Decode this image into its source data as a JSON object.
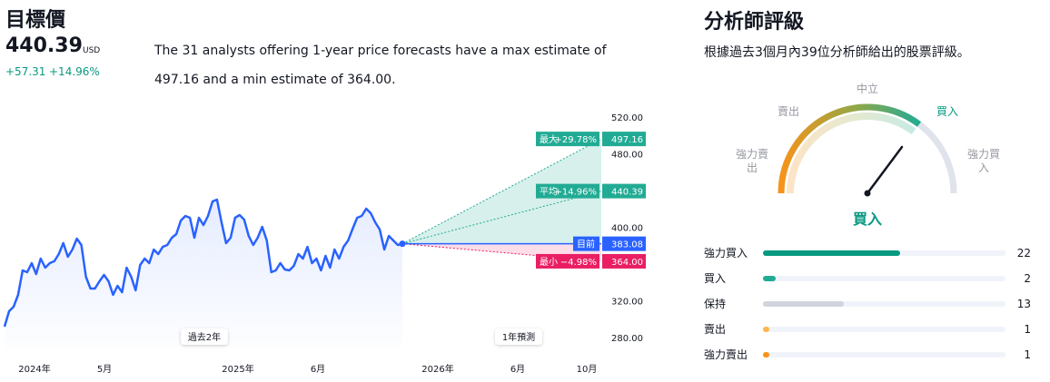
{
  "summary": {
    "title": "目標價",
    "price": "440.39",
    "currency": "USD",
    "change": "+57.31",
    "change_pct": "+14.96%",
    "description": "The 31 analysts offering 1-year price forecasts have a max estimate of 497.16 and a min estimate of 364.00."
  },
  "chart_data": {
    "type": "line",
    "history": {
      "color": "#2962ff",
      "values": [
        292.8,
        309.6,
        314.6,
        327.4,
        354.1,
        352.1,
        362.0,
        350.1,
        366.9,
        357.0,
        362.0,
        364.0,
        371.9,
        383.8,
        368.9,
        376.8,
        388.6,
        381.7,
        347.2,
        334.3,
        334.3,
        342.2,
        349.1,
        342.2,
        327.4,
        337.3,
        330.4,
        357.0,
        347.2,
        332.3,
        360.0,
        366.9,
        362.0,
        376.8,
        371.9,
        379.8,
        381.7,
        389.6,
        393.6,
        408.4,
        413.3,
        411.4,
        389.6,
        411.4,
        403.5,
        413.3,
        429.1,
        431.1,
        406.4,
        383.7,
        389.6,
        411.4,
        414.3,
        409.4,
        391.6,
        381.7,
        389.6,
        401.5,
        386.7,
        352.1,
        354.1,
        362.0,
        355.1,
        354.1,
        359.0,
        371.9,
        366.9,
        379.8,
        362.0,
        366.9,
        354.1,
        369.9,
        357.0,
        376.8,
        366.9,
        379.8,
        386.7,
        399.5,
        411.4,
        413.3,
        421.2,
        416.3,
        406.4,
        398.5,
        376.8,
        391.6,
        386.7,
        381.7,
        383.08
      ]
    },
    "forecast": {
      "max": {
        "label": "最大",
        "change": "+29.78%",
        "value": 497.16,
        "color": "#22ab94"
      },
      "average": {
        "label": "平均",
        "change": "+14.96%",
        "value": 440.39,
        "color": "#22ab94"
      },
      "current": {
        "label": "目前",
        "value": 383.08,
        "color": "#2962ff"
      },
      "min": {
        "label": "最小",
        "change": "−4.98%",
        "value": 364,
        "value_label": "364.00",
        "color": "#e91e63"
      }
    },
    "ylim": [
      280,
      520
    ],
    "yticks": [
      {
        "value": 520,
        "label": "520.00"
      },
      {
        "value": 480,
        "label": "480.00"
      },
      {
        "value": 400,
        "label": "400.00"
      },
      {
        "value": 320,
        "label": "320.00"
      },
      {
        "value": 280,
        "label": "280.00"
      }
    ],
    "xtick_labels": [
      "2024年",
      "5月",
      "2025年",
      "6月",
      "2026年",
      "6月",
      "10月"
    ],
    "period_labels": [
      "過去2年",
      "1年預測"
    ]
  },
  "rating": {
    "title": "分析師評級",
    "subtitle": "根據過去3個月內39位分析師給出的股票評級。",
    "gauge_labels": [
      "強力賣出",
      "賣出",
      "中立",
      "買入",
      "強力買入"
    ],
    "result": "買入",
    "distribution": [
      {
        "label": "強力買入",
        "value": 22,
        "color": "#089981"
      },
      {
        "label": "買入",
        "value": 2,
        "color": "#22ab94"
      },
      {
        "label": "保持",
        "value": 13,
        "color": "#d1d4dc"
      },
      {
        "label": "賣出",
        "value": 1,
        "color": "#ffb74d"
      },
      {
        "label": "強力賣出",
        "value": 1,
        "color": "#f7931a"
      }
    ]
  }
}
